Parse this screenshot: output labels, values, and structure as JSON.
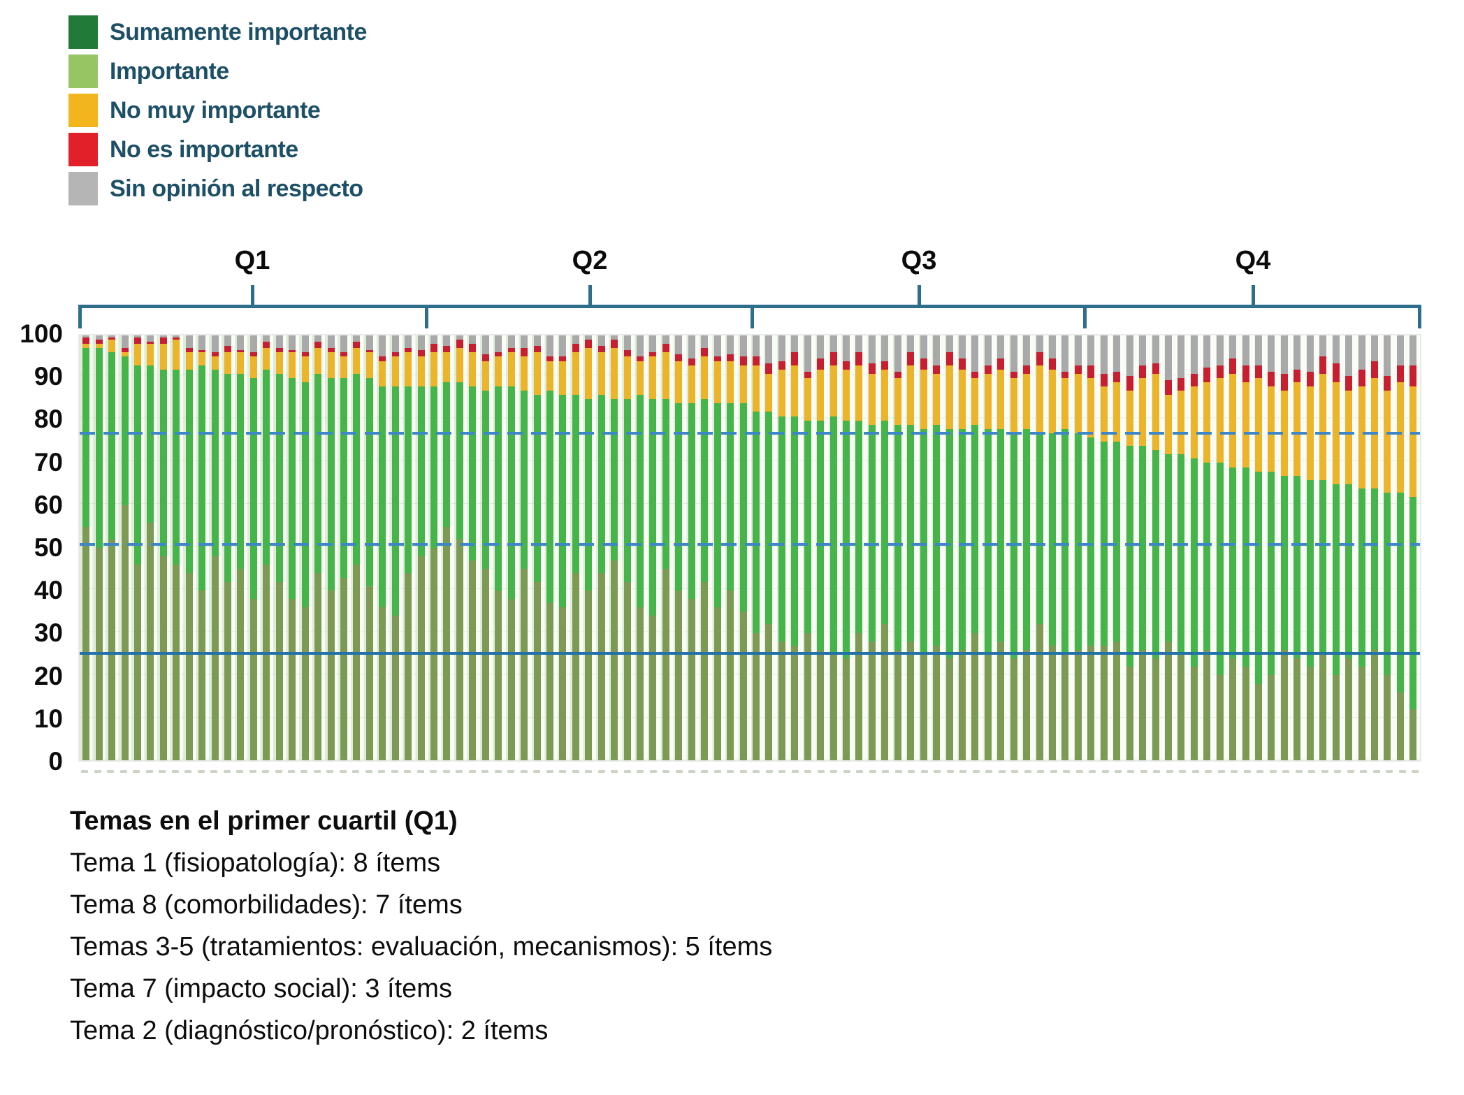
{
  "page": {
    "background": "#ffffff"
  },
  "legend": {
    "text_color": "#1d4f66",
    "items": [
      {
        "label": "Sumamente importante",
        "color": "#217a38"
      },
      {
        "label": "Importante",
        "color": "#97c564"
      },
      {
        "label": "No muy importante",
        "color": "#f2b51e"
      },
      {
        "label": "No es importante",
        "color": "#e1202a"
      },
      {
        "label": "Sin opinión al respecto",
        "color": "#b5b5b5"
      }
    ]
  },
  "quartiles": {
    "labels": [
      "Q1",
      "Q2",
      "Q3",
      "Q4"
    ],
    "bracket_color": "#2d6e8d",
    "bars_per_quartile": 26
  },
  "y_axis": {
    "ticks": [
      0,
      10,
      20,
      30,
      40,
      50,
      60,
      70,
      80,
      90,
      100
    ]
  },
  "x_axis": {
    "n_bars": 104,
    "item_labels_legible": false
  },
  "chart_data": {
    "type": "bar",
    "stacked": true,
    "unit": "percent",
    "total_per_bar": 100,
    "ylim": [
      0,
      100
    ],
    "title": "",
    "series": [
      {
        "name": "Sumamente importante",
        "bar_color": "#7d9a55"
      },
      {
        "name": "Importante",
        "bar_color": "#45b549"
      },
      {
        "name": "No muy importante",
        "bar_color": "#ecb429"
      },
      {
        "name": "No es importante",
        "bar_color": "#c71f2f"
      },
      {
        "name": "Sin opinión al respecto",
        "bar_color": "#a9a9a9"
      }
    ],
    "bars_cumulative_note": "Each bar = cumulative % tops [Sumamente, +Importante, +No muy importante, +No es importante]; 'Sin opinión al respecto' fills the remainder up to 100. Values estimated from pixels.",
    "bars": [
      [
        55,
        97,
        98,
        99.5
      ],
      [
        50,
        97,
        98,
        99
      ],
      [
        52,
        96,
        99,
        99.5
      ],
      [
        60,
        95,
        96,
        97
      ],
      [
        46,
        93,
        98,
        99.5
      ],
      [
        56,
        93,
        98,
        98.5
      ],
      [
        48,
        92,
        98,
        99.5
      ],
      [
        46,
        92,
        99,
        99.5
      ],
      [
        44,
        92,
        96,
        97
      ],
      [
        40,
        93,
        96,
        96.5
      ],
      [
        48,
        92,
        95,
        96
      ],
      [
        42,
        91,
        96,
        97.5
      ],
      [
        45,
        91,
        96,
        96.5
      ],
      [
        38,
        90,
        95,
        96
      ],
      [
        46,
        92,
        97,
        98.5
      ],
      [
        42,
        91,
        96,
        97
      ],
      [
        38,
        90,
        96,
        96.5
      ],
      [
        36,
        89,
        95,
        96
      ],
      [
        44,
        91,
        97,
        98.5
      ],
      [
        40,
        90,
        96,
        97
      ],
      [
        43,
        90,
        95,
        96
      ],
      [
        46,
        91,
        97,
        98.5
      ],
      [
        41,
        90,
        96,
        96.5
      ],
      [
        36,
        88,
        94,
        95
      ],
      [
        34,
        88,
        95,
        96
      ],
      [
        44,
        88,
        96,
        97
      ],
      [
        48,
        88,
        95,
        96.5
      ],
      [
        50,
        88,
        96,
        98
      ],
      [
        55,
        89,
        96,
        97.5
      ],
      [
        52,
        89,
        97,
        99
      ],
      [
        47,
        88,
        96,
        98
      ],
      [
        45,
        87,
        94,
        95.5
      ],
      [
        40,
        88,
        95,
        96
      ],
      [
        38,
        88,
        96,
        97
      ],
      [
        45,
        87,
        95,
        97
      ],
      [
        42,
        86,
        96,
        97.5
      ],
      [
        37,
        87,
        94,
        95
      ],
      [
        36,
        86,
        94,
        95
      ],
      [
        44,
        86,
        96,
        98
      ],
      [
        40,
        85,
        97,
        99
      ],
      [
        44,
        86,
        96,
        97.5
      ],
      [
        47,
        85,
        97,
        99
      ],
      [
        42,
        85,
        95,
        96.5
      ],
      [
        36,
        86,
        94,
        95
      ],
      [
        34,
        85,
        95,
        96
      ],
      [
        45,
        85,
        96,
        98
      ],
      [
        40,
        84,
        94,
        95.5
      ],
      [
        38,
        84,
        93,
        94.5
      ],
      [
        42,
        85,
        95,
        97
      ],
      [
        36,
        84,
        94,
        95
      ],
      [
        40,
        84,
        94,
        95.5
      ],
      [
        35,
        84,
        93,
        95
      ],
      [
        30,
        82,
        93,
        95
      ],
      [
        32,
        82,
        91,
        93.5
      ],
      [
        28,
        81,
        92,
        94
      ],
      [
        27,
        81,
        93,
        96
      ],
      [
        30,
        80,
        90,
        91.5
      ],
      [
        26,
        80,
        92,
        94.5
      ],
      [
        25,
        81,
        93,
        96
      ],
      [
        24,
        80,
        92,
        94
      ],
      [
        30,
        80,
        93,
        96
      ],
      [
        28,
        79,
        91,
        93.5
      ],
      [
        32,
        80,
        92,
        94
      ],
      [
        26,
        79,
        90,
        91.5
      ],
      [
        28,
        79,
        93,
        96
      ],
      [
        25,
        78,
        92,
        94.5
      ],
      [
        27,
        79,
        91,
        93
      ],
      [
        24,
        78,
        93,
        96
      ],
      [
        26,
        78,
        92,
        94.5
      ],
      [
        30,
        79,
        90,
        91.5
      ],
      [
        25,
        78,
        91,
        93
      ],
      [
        28,
        78,
        92,
        94.5
      ],
      [
        24,
        77,
        90,
        91.5
      ],
      [
        26,
        78,
        91,
        93
      ],
      [
        32,
        77,
        93,
        96
      ],
      [
        27,
        77,
        92,
        94.5
      ],
      [
        25,
        78,
        90,
        91.5
      ],
      [
        26,
        77,
        91,
        93
      ],
      [
        27,
        76,
        90,
        93
      ],
      [
        27,
        75,
        88,
        91
      ],
      [
        28,
        75,
        89,
        91.5
      ],
      [
        22,
        74,
        87,
        90.5
      ],
      [
        26,
        74,
        90,
        93
      ],
      [
        24,
        73,
        91,
        93.5
      ],
      [
        28,
        72,
        86,
        89.5
      ],
      [
        25,
        72,
        87,
        90
      ],
      [
        22,
        71,
        88,
        91
      ],
      [
        26,
        70,
        89,
        92.5
      ],
      [
        20,
        70,
        90,
        93
      ],
      [
        24,
        69,
        91,
        94.5
      ],
      [
        22,
        69,
        89,
        93
      ],
      [
        18,
        68,
        90,
        93
      ],
      [
        20,
        68,
        88,
        91.5
      ],
      [
        26,
        67,
        87,
        91
      ],
      [
        24,
        67,
        89,
        92
      ],
      [
        22,
        66,
        88,
        91.5
      ],
      [
        25,
        66,
        91,
        95
      ],
      [
        20,
        65,
        89,
        93.5
      ],
      [
        24,
        65,
        87,
        90.5
      ],
      [
        22,
        64,
        88,
        92
      ],
      [
        26,
        64,
        90,
        94
      ],
      [
        20,
        63,
        87,
        90.5
      ],
      [
        16,
        63,
        89,
        93
      ],
      [
        12,
        62,
        88,
        93
      ]
    ],
    "reference_lines": [
      {
        "value": 76.5,
        "style": "dashed",
        "color": "#3d86c8"
      },
      {
        "value": 50.5,
        "style": "dashed",
        "color": "#3d86c8"
      },
      {
        "value": 25,
        "style": "solid",
        "color": "#2271ab"
      }
    ]
  },
  "notes": {
    "title": "Temas en el primer cuartil (Q1)",
    "items": [
      "Tema 1 (fisiopatología): 8 ítems",
      "Tema 8 (comorbilidades): 7 ítems",
      "Temas 3-5 (tratamientos: evaluación, mecanismos): 5 ítems",
      "Tema 7 (impacto social): 3 ítems",
      "Tema 2 (diagnóstico/pronóstico): 2 ítems"
    ]
  }
}
